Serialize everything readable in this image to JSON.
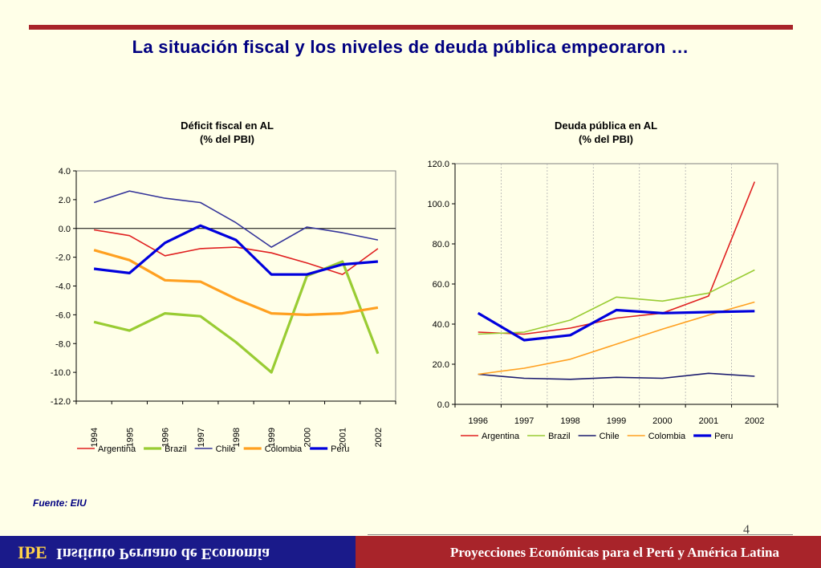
{
  "slide": {
    "title": "La situación fiscal y los niveles de deuda pública empeoraron …",
    "source": "Fuente: EIU",
    "page_number": "4"
  },
  "footer": {
    "logo": "IPE",
    "institute_name": "Instituto Peruano de Economía",
    "caption": "Proyecciones Económicas para el Perú y América Latina"
  },
  "colors": {
    "background": "#FFFFE8",
    "accent_red": "#A8242A",
    "footer_blue": "#1A1A8A",
    "title_blue": "#000080"
  },
  "chart_data": [
    {
      "type": "line",
      "title_line1": "Déficit fiscal en AL",
      "title_line2": "(% del PBI)",
      "categories": [
        "1994",
        "1995",
        "1996",
        "1997",
        "1998",
        "1999",
        "2000",
        "2001",
        "2002"
      ],
      "ylim": [
        -12.0,
        4.0
      ],
      "yticks": [
        "4.0",
        "2.0",
        "0.0",
        "-2.0",
        "-4.0",
        "-6.0",
        "-8.0",
        "-10.0",
        "-12.0"
      ],
      "xtick_rotation": "vertical",
      "legend": "bottom",
      "series": [
        {
          "name": "Argentina",
          "color": "#E02020",
          "width": "thin",
          "values": [
            -0.1,
            -0.5,
            -1.9,
            -1.4,
            -1.3,
            -1.7,
            -2.4,
            -3.2,
            -1.4
          ]
        },
        {
          "name": "Brazil",
          "color": "#99CC33",
          "width": "thick",
          "values": [
            -6.5,
            -7.1,
            -5.9,
            -6.1,
            -7.9,
            -10.0,
            -3.3,
            -2.3,
            -8.7
          ]
        },
        {
          "name": "Chile",
          "color": "#333399",
          "width": "thin",
          "values": [
            1.8,
            2.6,
            2.1,
            1.8,
            0.4,
            -1.3,
            0.1,
            -0.3,
            -0.8
          ]
        },
        {
          "name": "Colombia",
          "color": "#FFA020",
          "width": "thick",
          "values": [
            -1.5,
            -2.2,
            -3.6,
            -3.7,
            -4.9,
            -5.9,
            -6.0,
            -5.9,
            -5.5
          ]
        },
        {
          "name": "Peru",
          "color": "#0000DD",
          "width": "thick",
          "values": [
            -2.8,
            -3.1,
            -1.0,
            0.2,
            -0.8,
            -3.2,
            -3.2,
            -2.5,
            -2.3
          ]
        }
      ]
    },
    {
      "type": "line",
      "title_line1": "Deuda pública en AL",
      "title_line2": "(% del PBI)",
      "categories": [
        "1996",
        "1997",
        "1998",
        "1999",
        "2000",
        "2001",
        "2002"
      ],
      "ylim": [
        0.0,
        120.0
      ],
      "yticks": [
        "120.0",
        "100.0",
        "80.0",
        "60.0",
        "40.0",
        "20.0",
        "0.0"
      ],
      "xtick_rotation": "horizontal",
      "legend": "bottom",
      "series": [
        {
          "name": "Argentina",
          "color": "#E02020",
          "width": "thin",
          "values": [
            36.0,
            35.0,
            38.0,
            43.0,
            45.5,
            54.0,
            111.0
          ]
        },
        {
          "name": "Brazil",
          "color": "#99CC33",
          "width": "thin",
          "values": [
            35.0,
            36.0,
            42.0,
            53.5,
            51.5,
            55.5,
            67.0
          ]
        },
        {
          "name": "Chile",
          "color": "#1A1A6E",
          "width": "thin",
          "values": [
            15.0,
            13.0,
            12.5,
            13.5,
            13.0,
            15.5,
            14.0
          ]
        },
        {
          "name": "Colombia",
          "color": "#FFA020",
          "width": "thin",
          "values": [
            15.0,
            18.0,
            22.5,
            30.0,
            37.5,
            44.5,
            51.0
          ]
        },
        {
          "name": "Peru",
          "color": "#0000DD",
          "width": "thick",
          "values": [
            45.5,
            32.0,
            34.5,
            47.0,
            45.5,
            46.0,
            46.5
          ]
        }
      ]
    }
  ]
}
